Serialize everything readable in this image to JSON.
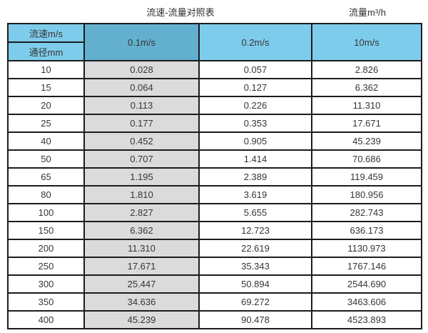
{
  "page": {
    "title_left": "流速-流量对照表",
    "title_right": "流量m³/h"
  },
  "table": {
    "corner_top_label": "流速m/s",
    "corner_bottom_label": "通径mm",
    "velocity_headers": [
      "0.1m/s",
      "0.2m/s",
      "10m/s"
    ],
    "rows": [
      {
        "dn": "10",
        "values": [
          "0.028",
          "0.057",
          "2.826"
        ]
      },
      {
        "dn": "15",
        "values": [
          "0.064",
          "0.127",
          "6.362"
        ]
      },
      {
        "dn": "20",
        "values": [
          "0.113",
          "0.226",
          "11.310"
        ]
      },
      {
        "dn": "25",
        "values": [
          "0.177",
          "0.353",
          "17.671"
        ]
      },
      {
        "dn": "40",
        "values": [
          "0.452",
          "0.905",
          "45.239"
        ]
      },
      {
        "dn": "50",
        "values": [
          "0.707",
          "1.414",
          "70.686"
        ]
      },
      {
        "dn": "65",
        "values": [
          "1.195",
          "2.389",
          "119.459"
        ]
      },
      {
        "dn": "80",
        "values": [
          "1.810",
          "3.619",
          "180.956"
        ]
      },
      {
        "dn": "100",
        "values": [
          "2.827",
          "5.655",
          "282.743"
        ]
      },
      {
        "dn": "150",
        "values": [
          "6.362",
          "12.723",
          "636.173"
        ]
      },
      {
        "dn": "200",
        "values": [
          "11.310",
          "22.619",
          "1130.973"
        ]
      },
      {
        "dn": "250",
        "values": [
          "17.671",
          "35.343",
          "1767.146"
        ]
      },
      {
        "dn": "300",
        "values": [
          "25.447",
          "50.894",
          "2544.690"
        ]
      },
      {
        "dn": "350",
        "values": [
          "34.636",
          "69.272",
          "3463.606"
        ]
      },
      {
        "dn": "400",
        "values": [
          "45.239",
          "90.478",
          "4523.893"
        ]
      }
    ]
  },
  "colors": {
    "header_blue": "#7ECCEB",
    "header_blue_dark": "#62AFCE",
    "col_gray": "#DBDBDB",
    "border": "#1c1c1c",
    "text": "#363636"
  },
  "chart_data": {
    "type": "table",
    "title": "流速-流量对照表",
    "unit_label": "流量m³/h",
    "row_header_label": "通径mm",
    "col_header_label": "流速m/s",
    "columns": [
      "0.1m/s",
      "0.2m/s",
      "10m/s"
    ],
    "rows": [
      {
        "diameter_mm": 10,
        "flows_m3h": [
          0.028,
          0.057,
          2.826
        ]
      },
      {
        "diameter_mm": 15,
        "flows_m3h": [
          0.064,
          0.127,
          6.362
        ]
      },
      {
        "diameter_mm": 20,
        "flows_m3h": [
          0.113,
          0.226,
          11.31
        ]
      },
      {
        "diameter_mm": 25,
        "flows_m3h": [
          0.177,
          0.353,
          17.671
        ]
      },
      {
        "diameter_mm": 40,
        "flows_m3h": [
          0.452,
          0.905,
          45.239
        ]
      },
      {
        "diameter_mm": 50,
        "flows_m3h": [
          0.707,
          1.414,
          70.686
        ]
      },
      {
        "diameter_mm": 65,
        "flows_m3h": [
          1.195,
          2.389,
          119.459
        ]
      },
      {
        "diameter_mm": 80,
        "flows_m3h": [
          1.81,
          3.619,
          180.956
        ]
      },
      {
        "diameter_mm": 100,
        "flows_m3h": [
          2.827,
          5.655,
          282.743
        ]
      },
      {
        "diameter_mm": 150,
        "flows_m3h": [
          6.362,
          12.723,
          636.173
        ]
      },
      {
        "diameter_mm": 200,
        "flows_m3h": [
          11.31,
          22.619,
          1130.973
        ]
      },
      {
        "diameter_mm": 250,
        "flows_m3h": [
          17.671,
          35.343,
          1767.146
        ]
      },
      {
        "diameter_mm": 300,
        "flows_m3h": [
          25.447,
          50.894,
          2544.69
        ]
      },
      {
        "diameter_mm": 350,
        "flows_m3h": [
          34.636,
          69.272,
          3463.606
        ]
      },
      {
        "diameter_mm": 400,
        "flows_m3h": [
          45.239,
          90.478,
          4523.893
        ]
      }
    ]
  }
}
